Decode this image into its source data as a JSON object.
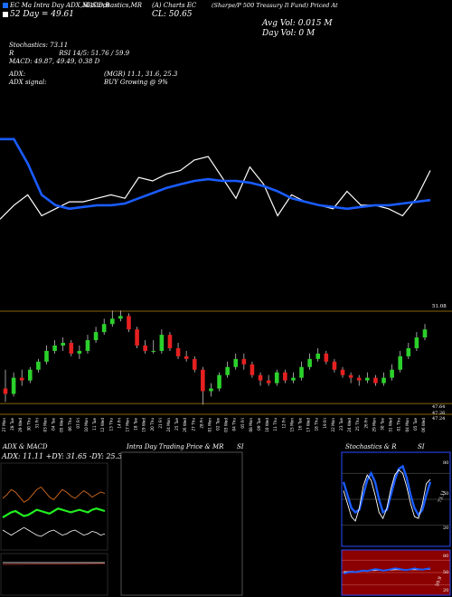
{
  "header": {
    "line1_left": "EC Ma Intra Day ADX,MACD,B",
    "line1_mid": "SI,Stochastics,MR",
    "line1_mid2": "(A) Charts EC",
    "line1_right": "(Sharpe/P 500 Treasury Il Fund) Priced At",
    "line2_left": "52 Day   = 49.61",
    "line2_mid": "CL: 50.65",
    "line3_right": "Avg Vol: 0.015  M",
    "line4_right": "Day Vol: 0   M"
  },
  "indicators": {
    "stoch": "Stochastics: 73.11",
    "rsi": "RSI 14/5: 51.76 / 59.9",
    "macd": "MACD: 49.87, 49.49, 0.38  D",
    "adx": "ADX:",
    "mgr": "(MGR) 11.1, 31.6, 25.3",
    "adx_signal": "ADX  signal:",
    "buy": "BUY Growing @ 9%"
  },
  "price_levels": {
    "top": "51.08",
    "bottom1": "47.64",
    "bottom2": "47.26",
    "bottom3": "47.24"
  },
  "panels": {
    "adx_title": "ADX  & MACD",
    "adx_values": "ADX: 11.11 +DY: 31.65 -DY: 25.32",
    "intraday_title": "Intra  Day Trading Price  & MR",
    "intraday_si": "SI",
    "stoch_title": "Stochastics & R",
    "stoch_si": "SI",
    "stoch_ticks": [
      "80",
      "50",
      "20"
    ],
    "stoch_value": "73.11",
    "rsi_ticks": [
      "80",
      "50",
      "20"
    ],
    "rsi_value": "59.9"
  },
  "colors": {
    "blue_line": "#1a5cff",
    "white_line": "#ffffff",
    "bull": "#2bd12b",
    "bear": "#e62020",
    "level": "#b8860b",
    "rsi_bg": "#8b0000",
    "stoch_border": "#2a4cff"
  },
  "chart_data": [
    {
      "type": "line",
      "title": "",
      "series": [
        {
          "values": [
            51.5,
            51.5,
            50.8,
            49.9,
            49.6,
            49.5,
            49.55,
            49.6,
            49.6,
            49.65,
            49.8,
            49.95,
            50.1,
            50.2,
            50.3,
            50.35,
            50.3,
            50.3,
            50.25,
            50.15,
            50.0,
            49.8,
            49.7,
            49.6,
            49.55,
            49.5,
            49.55,
            49.6,
            49.6,
            49.65,
            49.7,
            49.75
          ]
        },
        {
          "values": [
            49.2,
            49.6,
            49.9,
            49.3,
            49.5,
            49.7,
            49.7,
            49.8,
            49.9,
            49.8,
            50.4,
            50.3,
            50.5,
            50.6,
            50.9,
            51.0,
            50.4,
            49.8,
            50.7,
            50.2,
            49.3,
            49.9,
            49.7,
            49.6,
            49.5,
            50.0,
            49.6,
            49.6,
            49.5,
            49.3,
            49.8,
            50.6
          ]
        }
      ]
    },
    {
      "type": "bar",
      "title": "",
      "categories": [
        "27 Mon",
        "28 Tue",
        "29 Wed",
        "30 Thu",
        "31 Fri",
        "03 Mon",
        "04 Tue",
        "05 Wed",
        "06 Thu",
        "07 Fri",
        "10 Mon",
        "11 Tue",
        "12 Wed",
        "13 Thu",
        "14 Fri",
        "17 Mon",
        "18 Tue",
        "19 Wed",
        "20 Thu",
        "21 Fri",
        "24 Mon",
        "25 Tue",
        "26 Wed",
        "27 Thu",
        "28 Fri",
        "01 Mon",
        "02 Tue",
        "03 Wed",
        "04 Thu",
        "05 Fri",
        "08 Mon",
        "09 Tue",
        "10 Wed",
        "11 Thu",
        "12 Fri",
        "15 Mon",
        "16 Tue",
        "17 Wed",
        "18 Thu",
        "19 Fri",
        "22 Mon",
        "23 Tue",
        "24 Wed",
        "25 Thu",
        "26 Fri",
        "29 Mon",
        "30 Tue",
        "31 Wed",
        "01 Thu",
        "04 Mon",
        "05 Tue",
        "06 Wed"
      ],
      "series": [
        {
          "open": [
            48.2,
            48.0,
            48.6,
            48.5,
            48.9,
            49.2,
            49.6,
            49.8,
            49.9,
            49.5,
            49.6,
            50.0,
            50.3,
            50.6,
            50.8,
            50.9,
            50.4,
            49.8,
            49.6,
            49.6,
            50.2,
            49.7,
            49.4,
            49.3,
            48.9,
            48.1,
            48.2,
            48.7,
            49.0,
            49.3,
            49.1,
            48.7,
            48.5,
            48.4,
            48.8,
            48.5,
            48.6,
            49.0,
            49.3,
            49.5,
            49.2,
            48.9,
            48.7,
            48.6,
            48.5,
            48.6,
            48.4,
            48.6,
            48.9,
            49.4,
            49.7,
            50.1
          ],
          "close": [
            48.0,
            48.6,
            48.5,
            48.9,
            49.2,
            49.6,
            49.8,
            49.9,
            49.5,
            49.6,
            50.0,
            50.3,
            50.6,
            50.8,
            50.9,
            50.4,
            49.8,
            49.6,
            49.6,
            50.2,
            49.7,
            49.4,
            49.3,
            48.9,
            48.1,
            48.2,
            48.7,
            49.0,
            49.3,
            49.1,
            48.7,
            48.5,
            48.4,
            48.8,
            48.5,
            48.6,
            49.0,
            49.3,
            49.5,
            49.2,
            48.9,
            48.7,
            48.6,
            48.5,
            48.6,
            48.4,
            48.6,
            48.9,
            49.4,
            49.7,
            50.1,
            50.4
          ],
          "high": [
            48.9,
            48.8,
            48.9,
            49.0,
            49.3,
            49.8,
            50.0,
            50.1,
            50.0,
            49.8,
            50.2,
            50.5,
            50.8,
            51.1,
            51.1,
            51.0,
            50.5,
            50.0,
            50.0,
            50.4,
            50.3,
            49.9,
            49.6,
            49.4,
            49.0,
            48.4,
            48.8,
            49.2,
            49.5,
            49.5,
            49.2,
            48.8,
            48.7,
            48.9,
            48.9,
            48.8,
            49.2,
            49.5,
            49.7,
            49.6,
            49.3,
            49.0,
            48.8,
            48.7,
            48.8,
            48.7,
            48.8,
            49.1,
            49.6,
            49.9,
            50.3,
            50.6
          ],
          "low": [
            47.7,
            47.9,
            48.3,
            48.4,
            48.8,
            49.1,
            49.5,
            49.6,
            49.4,
            49.3,
            49.5,
            49.9,
            50.2,
            50.5,
            50.7,
            50.3,
            49.7,
            49.5,
            49.5,
            49.5,
            49.6,
            49.3,
            49.2,
            48.8,
            47.6,
            47.9,
            48.1,
            48.6,
            48.9,
            48.9,
            48.6,
            48.3,
            48.3,
            48.3,
            48.4,
            48.4,
            48.5,
            48.9,
            49.2,
            49.1,
            48.8,
            48.6,
            48.4,
            48.3,
            48.4,
            48.3,
            48.3,
            48.5,
            48.8,
            49.3,
            49.6,
            50.0
          ]
        }
      ],
      "ylim": [
        47.24,
        51.08
      ]
    },
    {
      "type": "line",
      "title": "ADX  & MACD",
      "series": [
        {
          "values": [
            40,
            42,
            44,
            45,
            43,
            41,
            42,
            44,
            46,
            45,
            44,
            43,
            45,
            47,
            46,
            45,
            44,
            45,
            46,
            45,
            44,
            46,
            47,
            46,
            45
          ]
        },
        {
          "values": [
            55,
            58,
            62,
            60,
            56,
            52,
            54,
            58,
            62,
            64,
            60,
            56,
            54,
            58,
            62,
            60,
            57,
            55,
            58,
            61,
            59,
            56,
            58,
            60,
            59
          ]
        },
        {
          "values": [
            30,
            28,
            26,
            28,
            30,
            32,
            30,
            28,
            26,
            25,
            27,
            29,
            30,
            28,
            26,
            27,
            29,
            30,
            28,
            26,
            27,
            29,
            28,
            26,
            27
          ]
        }
      ]
    },
    {
      "type": "line",
      "title": "Stochastics & R",
      "series": [
        {
          "values": [
            60,
            45,
            30,
            25,
            40,
            65,
            78,
            72,
            55,
            35,
            28,
            40,
            62,
            78,
            84,
            80,
            65,
            45,
            30,
            28,
            45,
            68,
            73
          ]
        },
        {
          "values": [
            70,
            55,
            40,
            35,
            38,
            55,
            72,
            80,
            70,
            50,
            35,
            38,
            55,
            72,
            85,
            88,
            75,
            55,
            40,
            32,
            38,
            55,
            70
          ]
        }
      ],
      "ylim": [
        0,
        100
      ]
    },
    {
      "type": "line",
      "title": "",
      "series": [
        {
          "values": [
            48,
            50,
            52,
            51,
            53,
            55,
            54,
            56,
            58,
            57,
            55,
            56,
            58,
            60,
            59,
            57,
            56,
            58,
            60,
            58,
            57,
            59,
            60
          ]
        },
        {
          "values": [
            52,
            52,
            53,
            52,
            53,
            54,
            54,
            55,
            55,
            56,
            55,
            56,
            56,
            57,
            57,
            56,
            56,
            57,
            57,
            57,
            57,
            58,
            58
          ]
        }
      ],
      "ylim": [
        0,
        100
      ]
    }
  ]
}
